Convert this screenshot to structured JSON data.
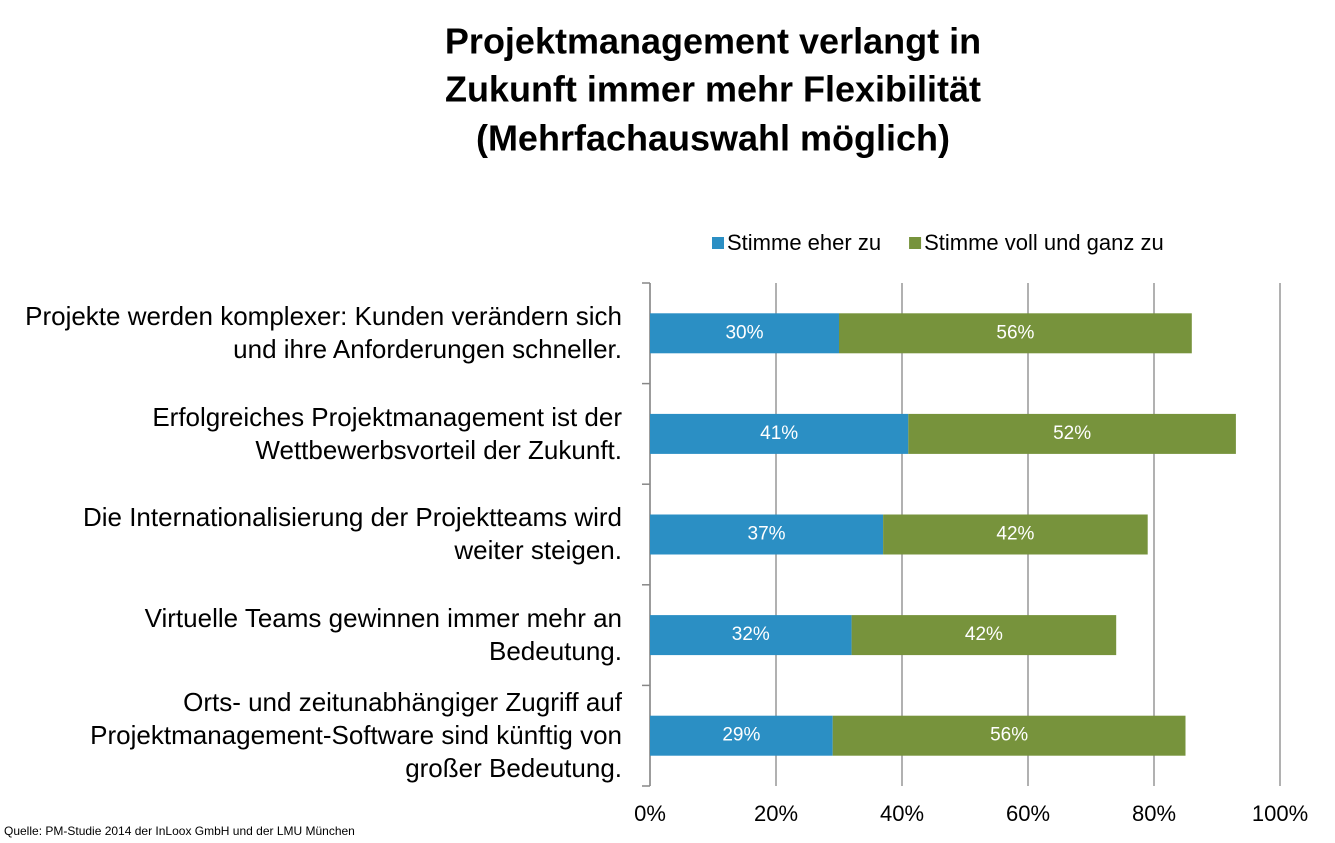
{
  "chart_data": {
    "type": "stacked-bar-horizontal",
    "title": [
      "Projektmanagement verlangt in",
      "Zukunft immer mehr Flexibilität",
      "(Mehrfachauswahl möglich)"
    ],
    "categories": [
      "Projekte werden komplexer: Kunden verändern sich und ihre Anforderungen schneller.",
      "Erfolgreiches Projektmanagement ist der Wettbewerbsvorteil der Zukunft.",
      "Die Internationalisierung der Projektteams wird weiter steigen.",
      "Virtuelle Teams gewinnen immer mehr an Bedeutung.",
      "Orts- und zeitunabhängiger Zugriff auf Projektmanagement-Software sind künftig von großer Bedeutung."
    ],
    "series": [
      {
        "name": "Stimme eher zu",
        "color": "#2b8fc4",
        "values": [
          30,
          41,
          37,
          32,
          29
        ],
        "value_labels": [
          "30%",
          "41%",
          "37%",
          "32%",
          "29%"
        ]
      },
      {
        "name": "Stimme voll und ganz zu",
        "color": "#77933c",
        "values": [
          56,
          52,
          42,
          42,
          56
        ],
        "value_labels": [
          "56%",
          "52%",
          "42%",
          "42%",
          "56%"
        ]
      }
    ],
    "xlim": [
      0,
      100
    ],
    "xticks": [
      {
        "value": 0,
        "label": "0%"
      },
      {
        "value": 20,
        "label": "20%"
      },
      {
        "value": 40,
        "label": "40%"
      },
      {
        "value": 60,
        "label": "60%"
      },
      {
        "value": 80,
        "label": "80%"
      },
      {
        "value": 100,
        "label": "100%"
      }
    ],
    "grid": true,
    "legend": "top",
    "source": "Quelle: PM-Studie 2014 der InLoox GmbH und der LMU München"
  }
}
